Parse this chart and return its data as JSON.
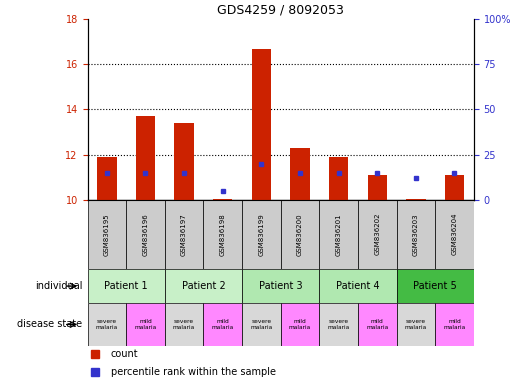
{
  "title": "GDS4259 / 8092053",
  "samples": [
    "GSM836195",
    "GSM836196",
    "GSM836197",
    "GSM836198",
    "GSM836199",
    "GSM836200",
    "GSM836201",
    "GSM836202",
    "GSM836203",
    "GSM836204"
  ],
  "bar_heights": [
    11.9,
    13.7,
    13.4,
    10.05,
    16.7,
    12.3,
    11.9,
    11.1,
    10.05,
    11.1
  ],
  "bar_base": 10.0,
  "blue_square_percentile": [
    15,
    15,
    15,
    5,
    20,
    15,
    15,
    15,
    12,
    15
  ],
  "ylim_left": [
    10,
    18
  ],
  "ylim_right": [
    0,
    100
  ],
  "yticks_left": [
    10,
    12,
    14,
    16,
    18
  ],
  "yticks_right": [
    0,
    25,
    50,
    75,
    100
  ],
  "ytick_labels_right": [
    "0",
    "25",
    "50",
    "75",
    "100%"
  ],
  "patients": [
    {
      "label": "Patient 1",
      "cols": [
        0,
        1
      ],
      "color": "#c8f0c8"
    },
    {
      "label": "Patient 2",
      "cols": [
        2,
        3
      ],
      "color": "#c8f0c8"
    },
    {
      "label": "Patient 3",
      "cols": [
        4,
        5
      ],
      "color": "#b0e8b0"
    },
    {
      "label": "Patient 4",
      "cols": [
        6,
        7
      ],
      "color": "#b0e8b0"
    },
    {
      "label": "Patient 5",
      "cols": [
        8,
        9
      ],
      "color": "#44bb44"
    }
  ],
  "disease_states": [
    {
      "label": "severe\nmalaria",
      "col": 0,
      "color": "#d8d8d8"
    },
    {
      "label": "mild\nmalaria",
      "col": 1,
      "color": "#ff88ff"
    },
    {
      "label": "severe\nmalaria",
      "col": 2,
      "color": "#d8d8d8"
    },
    {
      "label": "mild\nmalaria",
      "col": 3,
      "color": "#ff88ff"
    },
    {
      "label": "severe\nmalaria",
      "col": 4,
      "color": "#d8d8d8"
    },
    {
      "label": "mild\nmalaria",
      "col": 5,
      "color": "#ff88ff"
    },
    {
      "label": "severe\nmalaria",
      "col": 6,
      "color": "#d8d8d8"
    },
    {
      "label": "mild\nmalaria",
      "col": 7,
      "color": "#ff88ff"
    },
    {
      "label": "severe\nmalaria",
      "col": 8,
      "color": "#d8d8d8"
    },
    {
      "label": "mild\nmalaria",
      "col": 9,
      "color": "#ff88ff"
    }
  ],
  "bar_color": "#cc2200",
  "blue_color": "#3333cc",
  "grid_color": "black",
  "sample_bg_color": "#cccccc",
  "left_axis_color": "#cc2200",
  "right_axis_color": "#3333cc"
}
